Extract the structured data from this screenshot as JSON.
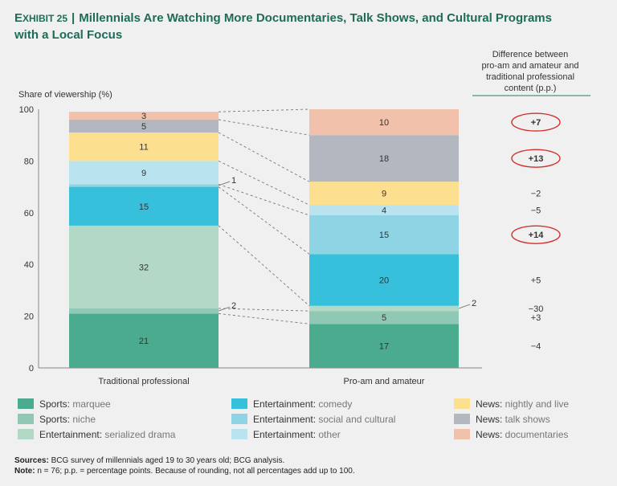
{
  "exhibit": {
    "label_big": "E",
    "label_small": "XHIBIT 25",
    "separator": "|"
  },
  "title_line1": "Millennials Are Watching More Documentaries, Talk Shows, and Cultural Programs",
  "title_line2": "with a Local Focus",
  "diff_header": [
    "Difference between",
    "pro-am and amateur and",
    "traditional professional",
    "content (p.p.)"
  ],
  "sources": {
    "label": "Sources:",
    "text": " BCG survey of millennials aged 19 to 30 years old; BCG analysis."
  },
  "note": {
    "label": "Note:",
    "text": " n = 76; p.p. = percentage points. Because of rounding, not all percentages add up to 100."
  },
  "chart_data": {
    "type": "bar",
    "stacked": true,
    "ylabel": "Share of viewership (%)",
    "ylim": [
      0,
      100
    ],
    "yticks": [
      0,
      20,
      40,
      60,
      80,
      100
    ],
    "categories": [
      "Traditional professional",
      "Pro-am and amateur"
    ],
    "series": [
      {
        "name": "Sports: marquee",
        "cat": "Sports:",
        "sub": " marquee",
        "color": "#4aab8e",
        "values": [
          21,
          17
        ]
      },
      {
        "name": "Sports: niche",
        "cat": "Sports:",
        "sub": " niche",
        "color": "#8fc9b5",
        "values": [
          2,
          5
        ]
      },
      {
        "name": "Entertainment: serialized drama",
        "cat": "Entertainment:",
        "sub": " serialized drama",
        "color": "#b3d9c6",
        "values": [
          32,
          2
        ]
      },
      {
        "name": "Entertainment: comedy",
        "cat": "Entertainment:",
        "sub": " comedy",
        "color": "#37c0dc",
        "values": [
          15,
          20
        ]
      },
      {
        "name": "Entertainment: social and cultural",
        "cat": "Entertainment:",
        "sub": " social and cultural",
        "color": "#8ed4e5",
        "values": [
          1,
          15
        ]
      },
      {
        "name": "Entertainment: other",
        "cat": "Entertainment:",
        "sub": " other",
        "color": "#b9e4ef",
        "values": [
          9,
          4
        ]
      },
      {
        "name": "News: nightly and live",
        "cat": "News:",
        "sub": " nightly and live",
        "color": "#fde08f",
        "values": [
          11,
          9
        ]
      },
      {
        "name": "News: talk shows",
        "cat": "News:",
        "sub": " talk shows",
        "color": "#b3b7bf",
        "values": [
          5,
          18
        ]
      },
      {
        "name": "News: documentaries",
        "cat": "News:",
        "sub": " documentaries",
        "color": "#f1c1ab",
        "values": [
          3,
          10
        ]
      }
    ],
    "differences": [
      "-4",
      "+3",
      "-30",
      "+5",
      "+14",
      "-5",
      "-2",
      "+13",
      "+7"
    ],
    "circled": [
      false,
      false,
      false,
      false,
      true,
      false,
      false,
      true,
      true
    ],
    "outside_labels": [
      {
        "series": 4,
        "bar": 0,
        "text": "1"
      },
      {
        "series": 1,
        "bar": 0,
        "text": "2"
      },
      {
        "series": 2,
        "bar": 1,
        "text": "2"
      }
    ],
    "grid": false,
    "legend_position": "bottom"
  }
}
